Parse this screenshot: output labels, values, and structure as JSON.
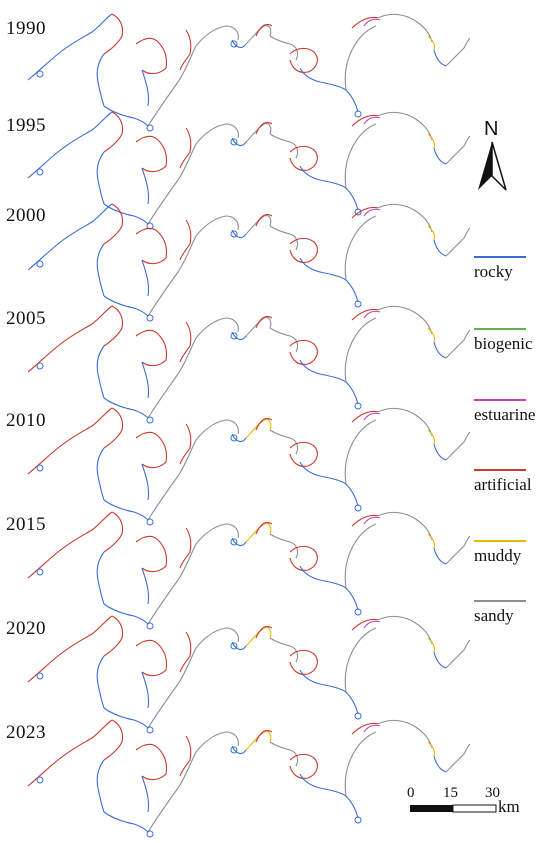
{
  "years": [
    "1990",
    "1995",
    "2000",
    "2005",
    "2010",
    "2015",
    "2020",
    "2023"
  ],
  "legend": [
    {
      "label": "rocky",
      "color": "#3a6fd1"
    },
    {
      "label": "biogenic",
      "color": "#6ab04c"
    },
    {
      "label": "estuarine",
      "color": "#c23fb5"
    },
    {
      "label": "artificial",
      "color": "#c8392f"
    },
    {
      "label": "muddy",
      "color": "#e6b800"
    },
    {
      "label": "sandy",
      "color": "#8a8f99"
    }
  ],
  "north_arrow": {
    "letter": "N"
  },
  "scale_bar": {
    "ticks": [
      "0",
      "15",
      "30"
    ],
    "unit": "km"
  },
  "coast_colors": {
    "rocky": "#3a6fd1",
    "artificial": "#c8392f",
    "sandy": "#8a8f99",
    "estuarine": "#c23fb5",
    "biogenic": "#6ab04c",
    "muddy": "#e6b800"
  }
}
